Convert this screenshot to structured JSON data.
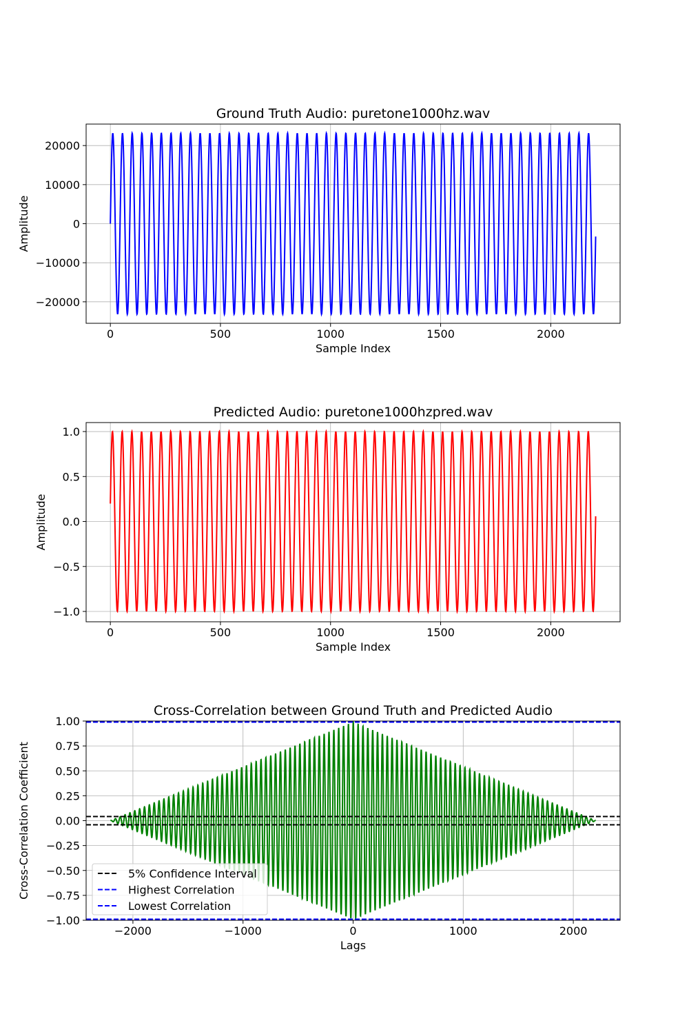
{
  "chart_data": [
    {
      "type": "line",
      "title": "Ground Truth Audio: puretone1000hz.wav",
      "xlabel": "Sample Index",
      "ylabel": "Amplitude",
      "xlim": [
        -110,
        2315
      ],
      "ylim": [
        -25500,
        25500
      ],
      "xticks": [
        0,
        500,
        1000,
        1500,
        2000
      ],
      "xtick_labels": [
        "0",
        "500",
        "1000",
        "1500",
        "2000"
      ],
      "yticks": [
        -20000,
        -10000,
        0,
        10000,
        20000
      ],
      "ytick_labels": [
        "−20000",
        "−10000",
        "0",
        "10000",
        "20000"
      ],
      "grid": true,
      "series": [
        {
          "color": "#0000ff",
          "signal": {
            "kind": "sine",
            "n_samples": 2205,
            "period_samples": 44.1,
            "amplitude": 23170,
            "offset": 0,
            "phase_deg": 0
          }
        }
      ]
    },
    {
      "type": "line",
      "title": "Predicted Audio: puretone1000hzpred.wav",
      "xlabel": "Sample Index",
      "ylabel": "Amplitude",
      "xlim": [
        -110,
        2315
      ],
      "ylim": [
        -1.115,
        1.1
      ],
      "xticks": [
        0,
        500,
        1000,
        1500,
        2000
      ],
      "xtick_labels": [
        "0",
        "500",
        "1000",
        "1500",
        "2000"
      ],
      "yticks": [
        -1.0,
        -0.5,
        0.0,
        0.5,
        1.0
      ],
      "ytick_labels": [
        "−1.0",
        "−0.5",
        "0.0",
        "0.5",
        "1.0"
      ],
      "grid": true,
      "series": [
        {
          "color": "#ff0000",
          "signal": {
            "kind": "sine",
            "n_samples": 2205,
            "period_samples": 44.1,
            "amplitude": 1.0,
            "offset": 0.0,
            "phase_deg": 11.5
          }
        }
      ]
    },
    {
      "type": "line",
      "title": "Cross-Correlation between Ground Truth and Predicted Audio",
      "xlabel": "Lags",
      "ylabel": "Cross-Correlation Coefficient",
      "xlim": [
        -2425,
        2425
      ],
      "ylim": [
        -1.0,
        1.0
      ],
      "xticks": [
        -2000,
        -1000,
        0,
        1000,
        2000
      ],
      "xtick_labels": [
        "−2000",
        "−1000",
        "0",
        "1000",
        "2000"
      ],
      "yticks": [
        -1.0,
        -0.75,
        -0.5,
        -0.25,
        0.0,
        0.25,
        0.5,
        0.75,
        1.0
      ],
      "ytick_labels": [
        "−1.00",
        "−0.75",
        "−0.50",
        "−0.25",
        "0.00",
        "0.25",
        "0.50",
        "0.75",
        "1.00"
      ],
      "grid": true,
      "series": [
        {
          "color": "#008000",
          "signal": {
            "kind": "triangular-envelope-cosine",
            "lag_min": -2204,
            "lag_max": 2204,
            "period_samples": 44.1,
            "peak": 0.99,
            "phase_deg": -11.5
          }
        }
      ],
      "hlines": [
        {
          "y": 0.0417,
          "color": "#000000",
          "style": "dashed"
        },
        {
          "y": -0.0417,
          "color": "#000000",
          "style": "dashed"
        },
        {
          "y": 0.99,
          "color": "#0000ff",
          "style": "dashed"
        },
        {
          "y": -0.99,
          "color": "#0000ff",
          "style": "dashed"
        }
      ],
      "legend": {
        "position": "lower-left",
        "entries": [
          {
            "label": "5% Confidence Interval",
            "color": "#000000",
            "style": "dashed"
          },
          {
            "label": "Highest Correlation",
            "color": "#0000ff",
            "style": "dashed"
          },
          {
            "label": "Lowest Correlation",
            "color": "#0000ff",
            "style": "dashed"
          }
        ]
      }
    }
  ]
}
